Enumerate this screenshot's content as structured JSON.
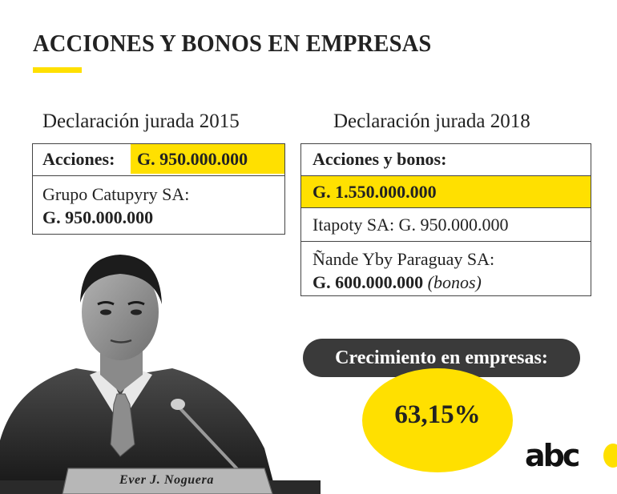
{
  "title": "ACCIONES Y BONOS EN EMPRESAS",
  "left": {
    "heading": "Declaración jurada 2015",
    "label": "Acciones:",
    "value": "G. 950.000.000",
    "company": "Grupo Catupyry SA:",
    "company_value": "G. 950.000.000"
  },
  "right": {
    "heading": "Declaración jurada 2018",
    "label": "Acciones y bonos:",
    "total": "G. 1.550.000.000",
    "company1": "Itapoty SA: G. 950.000.000",
    "company2": "Ñande Yby Paraguay SA:",
    "company2_value": "G. 600.000.000",
    "company2_note": "(bonos)"
  },
  "growth": {
    "label": "Crecimiento en empresas:",
    "percent": "63,15%"
  },
  "photo": {
    "nameplate": "Ever J. Noguera"
  },
  "logo": "abc",
  "colors": {
    "accent": "#ffe000",
    "dark": "#3a3a3a"
  }
}
